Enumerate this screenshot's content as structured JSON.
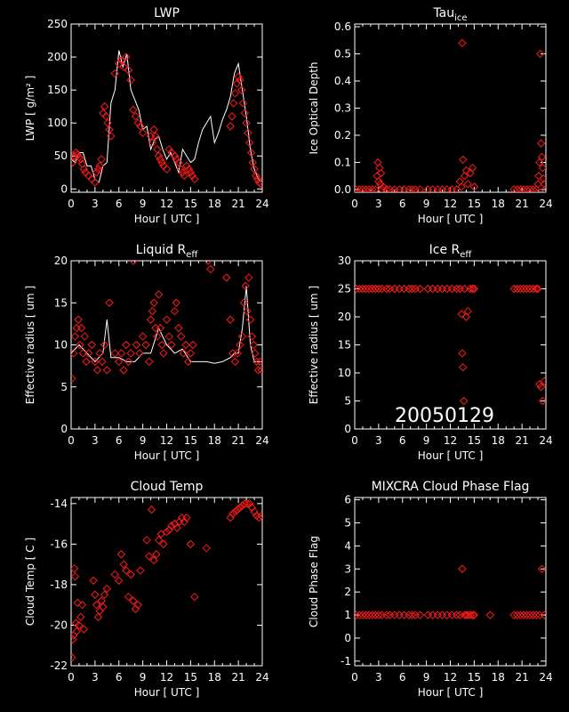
{
  "figure": {
    "date_stamp": "20050129",
    "background": "#000000",
    "axes_color": "#ffffff",
    "marker_color": "#ff1a1a",
    "line_color": "#ffffff"
  },
  "chart_data": [
    {
      "type": "scatter",
      "title": "LWP",
      "xlabel": "Hour [ UTC ]",
      "ylabel": "LWP [ g/m² ]",
      "xlim": [
        0,
        24
      ],
      "ylim": [
        -5,
        250
      ],
      "xticks": [
        0,
        3,
        6,
        9,
        12,
        15,
        18,
        21,
        24
      ],
      "yticks": [
        0,
        50,
        100,
        150,
        200,
        250
      ],
      "series": [
        {
          "kind": "line",
          "x": [
            0,
            0.5,
            1,
            1.5,
            2,
            2.5,
            3,
            3.5,
            4,
            4.5,
            5,
            5.5,
            6,
            6.5,
            7,
            7.5,
            8,
            8.5,
            9,
            9.5,
            10,
            10.5,
            11,
            11.5,
            12,
            12.5,
            13,
            13.5,
            14,
            14.5,
            15,
            15.5,
            16,
            16.5,
            17,
            17.5,
            18,
            18.5,
            19,
            19.5,
            20,
            20.5,
            21,
            21.5,
            22,
            22.5,
            23,
            23.5,
            24
          ],
          "y": [
            45,
            40,
            55,
            55,
            35,
            35,
            15,
            10,
            35,
            40,
            130,
            150,
            210,
            185,
            205,
            150,
            135,
            120,
            90,
            95,
            60,
            75,
            80,
            60,
            45,
            55,
            40,
            25,
            60,
            50,
            40,
            45,
            70,
            90,
            100,
            110,
            70,
            85,
            105,
            120,
            140,
            175,
            190,
            150,
            110,
            60,
            30,
            15,
            10
          ]
        },
        {
          "kind": "markers",
          "x": [
            0.2,
            0.4,
            0.6,
            0.8,
            1,
            1.2,
            1.4,
            1.6,
            1.8,
            2.2,
            2.6,
            3,
            3.2,
            3.4,
            3.6,
            3.8,
            4,
            4.2,
            4.4,
            4.6,
            4.8,
            5,
            5.5,
            6,
            6.3,
            6.6,
            6.9,
            7.2,
            7.5,
            7.8,
            8.1,
            8.4,
            8.7,
            9,
            10,
            10.2,
            10.4,
            10.6,
            10.8,
            11,
            11.2,
            11.4,
            11.6,
            12,
            12.3,
            12.6,
            13,
            13.2,
            13.5,
            13.8,
            14,
            14.2,
            14.5,
            14.8,
            15,
            15.2,
            15.5,
            20,
            20.2,
            20.4,
            20.6,
            20.8,
            21,
            21.2,
            21.4,
            21.6,
            21.8,
            22,
            22.2,
            22.4,
            22.6,
            22.8,
            23,
            23.2,
            23.4,
            23.6,
            23.8
          ],
          "y": [
            40,
            50,
            55,
            52,
            48,
            45,
            38,
            30,
            25,
            20,
            15,
            10,
            25,
            30,
            35,
            45,
            115,
            125,
            110,
            100,
            90,
            80,
            175,
            190,
            195,
            185,
            200,
            180,
            165,
            120,
            110,
            100,
            95,
            85,
            80,
            70,
            90,
            80,
            60,
            50,
            45,
            40,
            35,
            30,
            60,
            55,
            50,
            45,
            40,
            30,
            25,
            20,
            35,
            30,
            25,
            20,
            15,
            95,
            110,
            130,
            145,
            160,
            170,
            165,
            150,
            130,
            115,
            100,
            85,
            70,
            55,
            40,
            30,
            20,
            15,
            10,
            8
          ]
        }
      ]
    },
    {
      "type": "scatter",
      "title": "Tau",
      "title_sub": "ice",
      "xlabel": "Hour [ UTC ]",
      "ylabel": "Ice Optical Depth",
      "xlim": [
        0,
        24
      ],
      "ylim": [
        -0.01,
        0.61
      ],
      "xticks": [
        0,
        3,
        6,
        9,
        12,
        15,
        18,
        21,
        24
      ],
      "yticks": [
        0.0,
        0.1,
        0.2,
        0.3,
        0.4,
        0.5,
        0.6
      ],
      "ytick_labels": [
        "0.0",
        "0.1",
        "0.2",
        "0.3",
        "0.4",
        "0.5",
        "0.6"
      ],
      "series": [
        {
          "kind": "markers",
          "x": [
            0.2,
            0.6,
            1.0,
            1.4,
            1.8,
            2.2,
            2.6,
            2.8,
            2.9,
            3.0,
            3.1,
            3.2,
            3.3,
            3.4,
            3.6,
            4.0,
            4.4,
            5.0,
            5.6,
            6.2,
            6.8,
            7.2,
            7.6,
            8.2,
            9.2,
            9.8,
            10.4,
            11.0,
            11.6,
            12.2,
            12.8,
            13.2,
            13.4,
            13.5,
            13.6,
            13.8,
            14.0,
            14.2,
            14.5,
            14.8,
            15.0,
            20.0,
            20.4,
            20.8,
            21.2,
            21.6,
            22.0,
            22.4,
            22.8,
            23.0,
            23.1,
            23.2,
            23.3,
            23.4,
            23.5,
            23.6,
            23.7,
            23.8,
            23.9
          ],
          "y": [
            0,
            0,
            0,
            0,
            0,
            0,
            0,
            0.05,
            0.1,
            0.03,
            0.08,
            0.02,
            0.06,
            0.0,
            0.01,
            0,
            0,
            0,
            0,
            0,
            0,
            0,
            0,
            0,
            0,
            0,
            0,
            0,
            0,
            0,
            0,
            0.03,
            0.01,
            0.54,
            0.11,
            0.05,
            0.07,
            0.02,
            0.06,
            0.08,
            0.01,
            0,
            0,
            0,
            0,
            0,
            0,
            0,
            0,
            0.02,
            0.05,
            0.1,
            0.5,
            0.17,
            0.12,
            0.08,
            0.04,
            0.02,
            0.0
          ]
        }
      ]
    },
    {
      "type": "scatter",
      "title": "Liquid R",
      "title_sub": "eff",
      "xlabel": "Hour [ UTC ]",
      "ylabel": "Effective radius [ um ]",
      "xlim": [
        0,
        24
      ],
      "ylim": [
        0,
        20
      ],
      "xticks": [
        0,
        3,
        6,
        9,
        12,
        15,
        18,
        21,
        24
      ],
      "yticks": [
        0,
        5,
        10,
        15,
        20
      ],
      "series": [
        {
          "kind": "line",
          "x": [
            0,
            1,
            2,
            3,
            4,
            4.5,
            5,
            6,
            7,
            8,
            8.5,
            9,
            10,
            11,
            12,
            13,
            14,
            15,
            16,
            17,
            18,
            19,
            20,
            20.5,
            21,
            21.5,
            22,
            22.5,
            23,
            24
          ],
          "y": [
            9,
            10,
            9,
            8,
            9,
            13,
            8.5,
            8.5,
            8,
            8,
            8.5,
            9,
            9,
            12,
            10,
            9,
            9.5,
            8,
            8,
            8,
            7.8,
            8,
            8.5,
            9,
            9,
            12,
            17,
            10,
            8,
            8
          ]
        },
        {
          "kind": "markers",
          "x": [
            0.1,
            0.3,
            0.5,
            0.7,
            0.9,
            1.1,
            1.3,
            1.5,
            1.7,
            1.9,
            2.2,
            2.6,
            3.0,
            3.3,
            3.6,
            3.9,
            4.2,
            4.5,
            4.8,
            5.5,
            6.0,
            6.3,
            6.6,
            6.9,
            7.2,
            7.5,
            7.8,
            8.2,
            8.6,
            9.0,
            9.4,
            9.8,
            10.0,
            10.2,
            10.4,
            10.6,
            10.8,
            11.0,
            11.2,
            11.4,
            11.6,
            12.0,
            12.3,
            12.6,
            13.0,
            13.2,
            13.5,
            13.8,
            14.1,
            14.4,
            14.7,
            15.0,
            15.3,
            17.2,
            17.5,
            19.5,
            20.0,
            20.3,
            20.6,
            20.9,
            21.2,
            21.5,
            21.7,
            21.9,
            22.1,
            22.3,
            22.5,
            22.7,
            22.9,
            23.1,
            23.3,
            23.5,
            23.7,
            23.9
          ],
          "y": [
            6,
            9,
            11,
            12,
            13,
            10,
            12,
            9,
            11,
            8,
            9,
            10,
            8,
            7,
            9,
            8,
            10,
            7,
            15,
            9,
            8,
            9,
            7,
            10,
            8,
            9,
            20,
            10,
            9,
            11,
            10,
            8,
            13,
            14,
            15,
            12,
            11,
            16,
            12,
            10,
            9,
            13,
            11,
            10,
            14,
            15,
            12,
            11,
            9,
            10,
            8,
            9,
            10,
            20,
            19,
            18,
            13,
            9,
            8,
            9,
            10,
            11,
            15,
            17,
            14,
            18,
            13,
            11,
            10,
            9,
            8,
            7,
            8,
            7
          ]
        }
      ]
    },
    {
      "type": "scatter",
      "title": "Ice R",
      "title_sub": "eff",
      "xlabel": "Hour [ UTC ]",
      "ylabel": "Effective radius [ um ]",
      "xlim": [
        0,
        24
      ],
      "ylim": [
        0,
        30
      ],
      "xticks": [
        0,
        3,
        6,
        9,
        12,
        15,
        18,
        21,
        24
      ],
      "yticks": [
        0,
        5,
        10,
        15,
        20,
        25,
        30
      ],
      "series": [
        {
          "kind": "markers",
          "x": [
            0.2,
            0.6,
            1.0,
            1.4,
            1.8,
            2.2,
            2.6,
            3.0,
            3.4,
            4.0,
            4.4,
            5.0,
            5.6,
            6.2,
            6.8,
            7.2,
            7.6,
            8.2,
            9.2,
            9.8,
            10.4,
            11.0,
            11.6,
            12.2,
            12.8,
            13.2,
            13.4,
            13.5,
            13.6,
            13.7,
            13.8,
            14.0,
            14.2,
            14.5,
            14.8,
            15.0,
            20.0,
            20.4,
            20.8,
            21.2,
            21.6,
            22.0,
            22.4,
            22.8,
            23.0,
            23.2,
            23.4,
            23.6,
            23.8
          ],
          "y": [
            25,
            25,
            25,
            25,
            25,
            25,
            25,
            25,
            25,
            25,
            25,
            25,
            25,
            25,
            25,
            25,
            25,
            25,
            25,
            25,
            25,
            25,
            25,
            25,
            25,
            25,
            20.5,
            13.5,
            11,
            5,
            25,
            20,
            21,
            25,
            25,
            25,
            25,
            25,
            25,
            25,
            25,
            25,
            25,
            25,
            25,
            8,
            7.5,
            5,
            8.5
          ]
        }
      ]
    },
    {
      "type": "scatter",
      "title": "Cloud Temp",
      "xlabel": "Hour [ UTC ]",
      "ylabel": "Cloud Temp [ C ]",
      "xlim": [
        0,
        24
      ],
      "ylim": [
        -22,
        -13.7
      ],
      "xticks": [
        0,
        3,
        6,
        9,
        12,
        15,
        18,
        21,
        24
      ],
      "yticks": [
        -22,
        -20,
        -18,
        -16,
        -14
      ],
      "series": [
        {
          "kind": "markers",
          "x": [
            0.1,
            0.2,
            0.3,
            0.4,
            0.5,
            0.6,
            0.7,
            0.8,
            1.0,
            1.2,
            1.4,
            1.6,
            2.8,
            3.0,
            3.2,
            3.4,
            3.6,
            3.8,
            4.0,
            4.2,
            4.5,
            5.5,
            6.0,
            6.3,
            6.6,
            6.9,
            7.2,
            7.5,
            7.8,
            8.1,
            8.4,
            8.7,
            9.5,
            9.8,
            10.1,
            10.4,
            10.7,
            11.0,
            11.3,
            11.6,
            12.0,
            12.3,
            12.6,
            13.0,
            13.3,
            13.6,
            13.9,
            14.2,
            14.5,
            15.0,
            15.5,
            17.0,
            20.0,
            20.3,
            20.6,
            20.9,
            21.2,
            21.5,
            21.8,
            22.1,
            22.4,
            22.7,
            23.0,
            23.3,
            23.6,
            23.9
          ],
          "y": [
            -21.6,
            -20.7,
            -20.5,
            -17.2,
            -17.6,
            -19.9,
            -20.3,
            -18.9,
            -20.0,
            -19.6,
            -19.0,
            -20.2,
            -17.8,
            -18.5,
            -19.0,
            -19.6,
            -19.3,
            -18.8,
            -19.1,
            -18.5,
            -18.2,
            -17.5,
            -17.8,
            -16.5,
            -17.0,
            -17.3,
            -18.6,
            -17.5,
            -18.8,
            -19.2,
            -19.0,
            -17.3,
            -15.8,
            -16.6,
            -14.3,
            -16.8,
            -16.5,
            -15.8,
            -15.5,
            -16.0,
            -15.4,
            -15.3,
            -15.1,
            -15.0,
            -15.2,
            -14.9,
            -14.7,
            -14.9,
            -14.7,
            -16.0,
            -18.6,
            -16.2,
            -14.7,
            -14.5,
            -14.4,
            -14.3,
            -14.2,
            -14.1,
            -14.0,
            -14.0,
            -14.0,
            -14.2,
            -14.4,
            -14.6,
            -14.7,
            -14.6
          ]
        }
      ]
    },
    {
      "type": "scatter",
      "title": "MIXCRA Cloud Phase Flag",
      "xlabel": "Hour [ UTC ]",
      "ylabel": "Cloud Phase Flag",
      "xlim": [
        0,
        24
      ],
      "ylim": [
        -1.2,
        6.1
      ],
      "xticks": [
        0,
        3,
        6,
        9,
        12,
        15,
        18,
        21,
        24
      ],
      "yticks": [
        -1,
        0,
        1,
        2,
        3,
        4,
        5,
        6
      ],
      "series": [
        {
          "kind": "markers",
          "x": [
            0.2,
            0.6,
            1.0,
            1.4,
            1.8,
            2.2,
            2.6,
            3.0,
            3.4,
            4.0,
            4.4,
            5.0,
            5.6,
            6.2,
            6.8,
            7.2,
            7.6,
            8.2,
            9.2,
            9.8,
            10.4,
            11.0,
            11.6,
            12.2,
            12.8,
            13.2,
            13.5,
            13.8,
            14.0,
            14.2,
            14.5,
            14.8,
            15.0,
            17.0,
            20.0,
            20.4,
            20.8,
            21.2,
            21.6,
            22.0,
            22.4,
            22.8,
            23.2,
            23.5,
            23.8
          ],
          "y": [
            1,
            1,
            1,
            1,
            1,
            1,
            1,
            1,
            1,
            1,
            1,
            1,
            1,
            1,
            1,
            1,
            1,
            1,
            1,
            1,
            1,
            1,
            1,
            1,
            1,
            1,
            3,
            1,
            1,
            1,
            1,
            1,
            1,
            1,
            1,
            1,
            1,
            1,
            1,
            1,
            1,
            1,
            1,
            3,
            1
          ]
        }
      ]
    }
  ]
}
